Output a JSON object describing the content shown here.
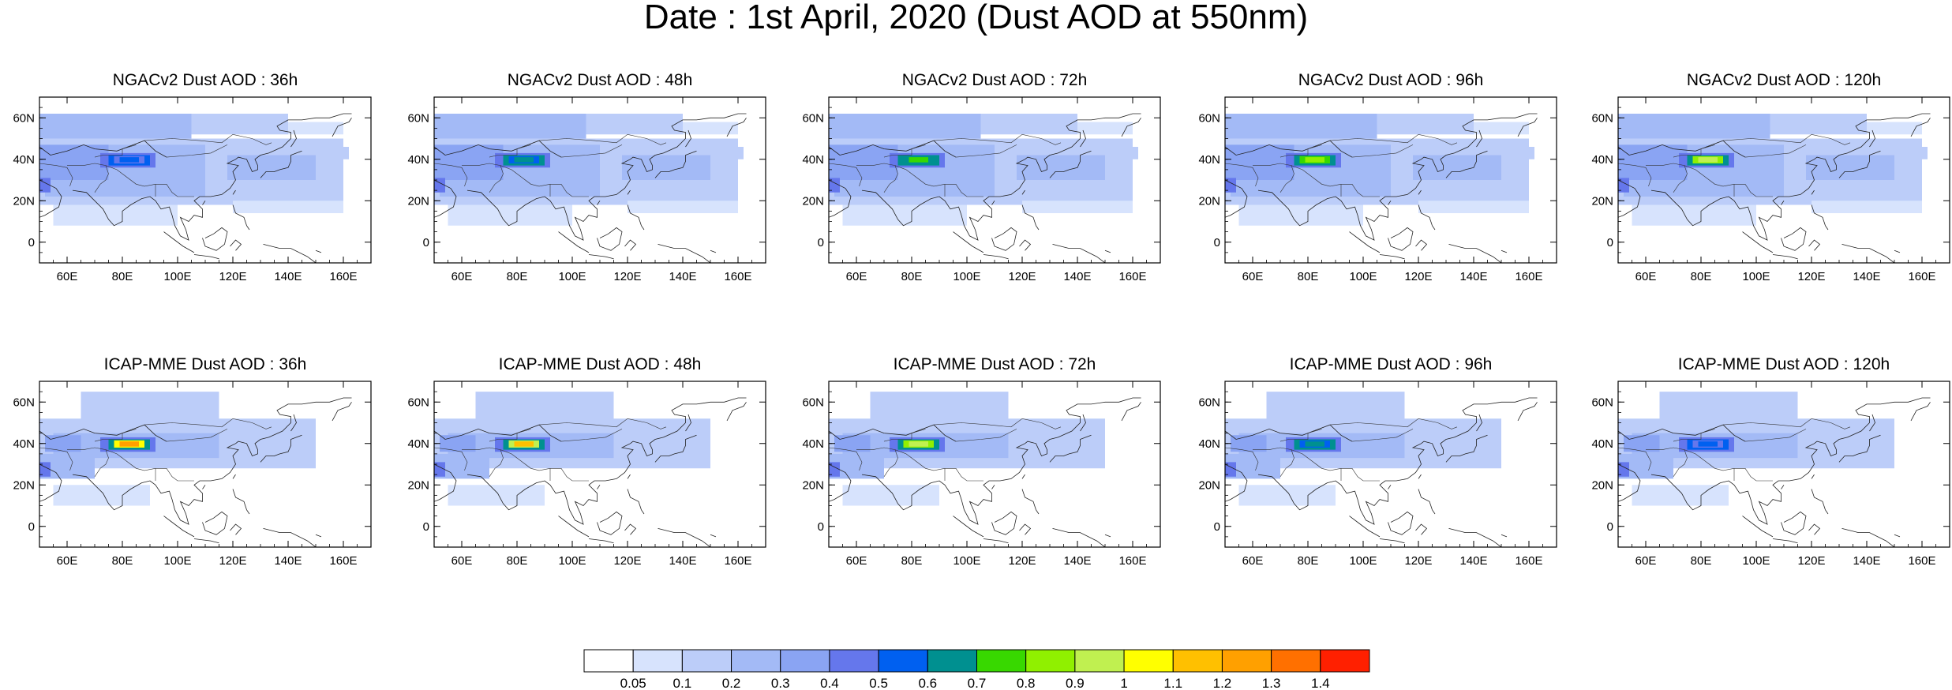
{
  "title": "Date : 1st April, 2020 (Dust AOD at 550nm)",
  "map": {
    "lat_range": [
      -10,
      70
    ],
    "lon_range": [
      50,
      170
    ],
    "lat_ticks": [
      "0",
      "20N",
      "40N",
      "60N"
    ],
    "lat_tick_values": [
      0,
      20,
      40,
      60
    ],
    "lon_ticks": [
      "60E",
      "80E",
      "100E",
      "120E",
      "140E",
      "160E"
    ],
    "lon_tick_values": [
      60,
      80,
      100,
      120,
      140,
      160
    ],
    "projection": "cylindrical equidistant"
  },
  "rows": [
    {
      "model": "NGACv2",
      "panels": [
        {
          "title": "NGACv2 Dust AOD : 36h",
          "lead_hours": 36,
          "peak_aod": 0.5
        },
        {
          "title": "NGACv2 Dust AOD : 48h",
          "lead_hours": 48,
          "peak_aod": 0.6
        },
        {
          "title": "NGACv2 Dust AOD : 72h",
          "lead_hours": 72,
          "peak_aod": 0.7
        },
        {
          "title": "NGACv2 Dust AOD : 96h",
          "lead_hours": 96,
          "peak_aod": 0.8
        },
        {
          "title": "NGACv2 Dust AOD : 120h",
          "lead_hours": 120,
          "peak_aod": 0.9
        }
      ]
    },
    {
      "model": "ICAP-MME",
      "panels": [
        {
          "title": "ICAP-MME Dust AOD : 36h",
          "lead_hours": 36,
          "peak_aod": 1.2
        },
        {
          "title": "ICAP-MME Dust AOD : 48h",
          "lead_hours": 48,
          "peak_aod": 1.1
        },
        {
          "title": "ICAP-MME Dust AOD : 72h",
          "lead_hours": 72,
          "peak_aod": 0.9
        },
        {
          "title": "ICAP-MME Dust AOD : 96h",
          "lead_hours": 96,
          "peak_aod": 0.6
        },
        {
          "title": "ICAP-MME Dust AOD : 120h",
          "lead_hours": 120,
          "peak_aod": 0.5
        }
      ]
    }
  ],
  "colorbar": {
    "labels": [
      "0.05",
      "0.1",
      "0.2",
      "0.3",
      "0.4",
      "0.5",
      "0.6",
      "0.7",
      "0.8",
      "0.9",
      "1",
      "1.1",
      "1.2",
      "1.3",
      "1.4"
    ],
    "colors": [
      "#ffffff",
      "#d7e3fd",
      "#bccdf9",
      "#a3baf6",
      "#8aa4f3",
      "#6577ec",
      "#0060f0",
      "#009090",
      "#38d800",
      "#90f000",
      "#c0f050",
      "#ffff00",
      "#ffc000",
      "#ffa000",
      "#ff7000",
      "#ff2000"
    ]
  }
}
